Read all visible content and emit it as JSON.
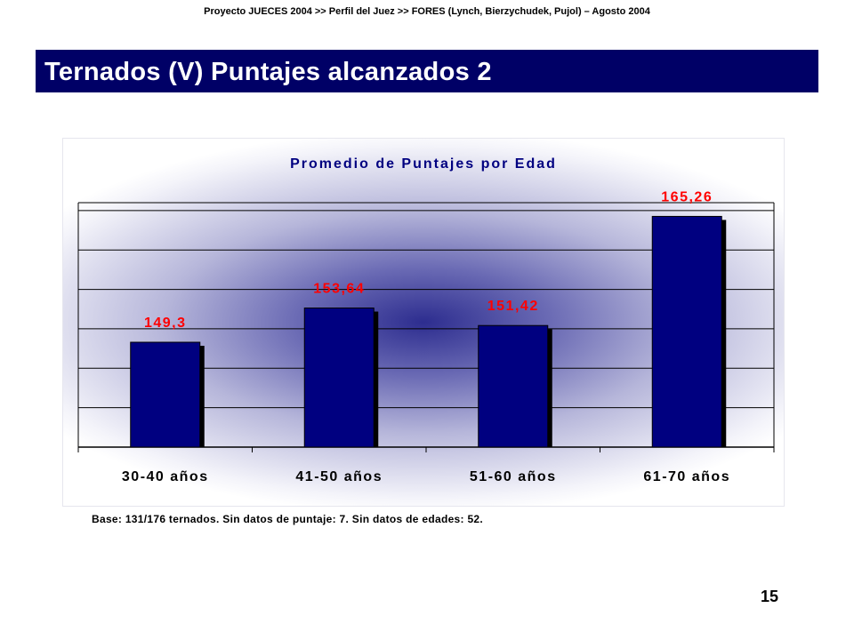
{
  "header": {
    "text": "Proyecto JUECES 2004 >> Perfil del Juez >> FORES  (Lynch, Bierzychudek, Pujol) – Agosto 2004"
  },
  "slide": {
    "title": "Ternados (V) Puntajes alcanzados 2",
    "footnote": "Base: 131/176 ternados. Sin datos de puntaje: 7. Sin datos de edades: 52.",
    "page_number": "15"
  },
  "colors": {
    "title_bar": "#000066",
    "bar_fill": "#000080",
    "bar_shadow": "#000000",
    "data_label": "#ff0000",
    "chart_title": "#000080"
  },
  "chart_data": {
    "type": "bar",
    "title": "Promedio de Puntajes por Edad",
    "categories": [
      "30-40 años",
      "41-50 años",
      "51-60 años",
      "61-70 años"
    ],
    "values": [
      149.3,
      153.64,
      151.42,
      165.26
    ],
    "value_labels": [
      "149,3",
      "153,64",
      "151,42",
      "165,26"
    ],
    "xlabel": "",
    "ylabel": "",
    "ylim": [
      136,
      167
    ],
    "y_gridlines": [
      141,
      146,
      151,
      156,
      161,
      166
    ],
    "y_tick_labels_visible": false,
    "grid": true,
    "legend": false
  }
}
